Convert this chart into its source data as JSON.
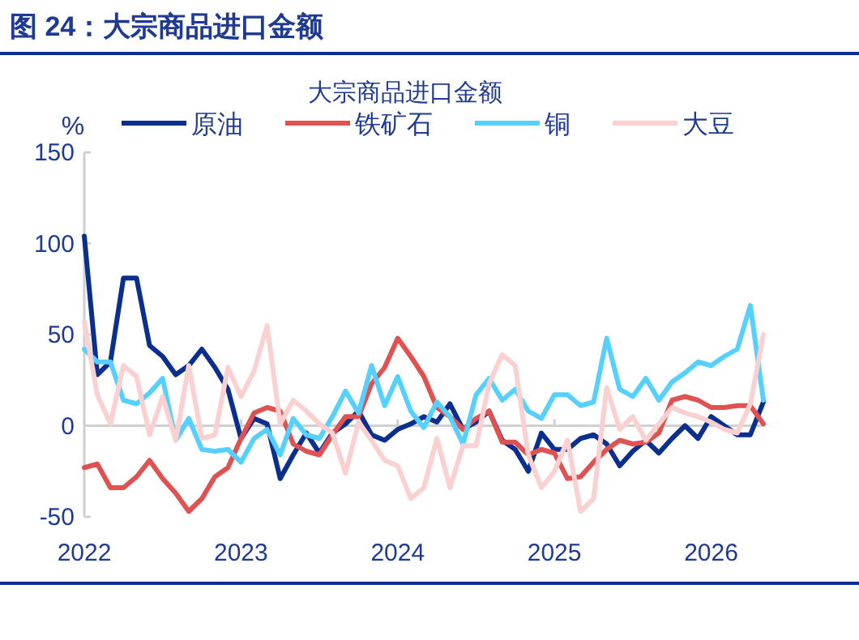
{
  "chart_data": {
    "type": "line",
    "title": "图 24：大宗商品进口金额",
    "subtitle": "大宗商品进口金额",
    "ylabel": "%",
    "x": [
      "2022-01",
      "2022-02",
      "2022-03",
      "2022-04",
      "2022-05",
      "2022-06",
      "2022-07",
      "2022-08",
      "2022-09",
      "2022-10",
      "2022-11",
      "2022-12",
      "2023-01",
      "2023-02",
      "2023-03",
      "2023-04",
      "2023-05",
      "2023-06",
      "2023-07",
      "2023-08",
      "2023-09",
      "2023-10",
      "2023-11",
      "2023-12",
      "2024-01",
      "2024-02",
      "2024-03",
      "2024-04",
      "2024-05",
      "2024-06",
      "2024-07",
      "2024-08",
      "2024-09",
      "2024-10",
      "2024-11",
      "2024-12",
      "2025-01",
      "2025-02",
      "2025-03",
      "2025-04",
      "2025-05",
      "2025-06",
      "2025-07",
      "2025-08",
      "2025-09",
      "2025-10",
      "2025-11",
      "2025-12",
      "2026-01",
      "2026-02",
      "2026-03",
      "2026-04",
      "2026-05"
    ],
    "series": [
      {
        "name": "原油",
        "color": "#0b2f8f",
        "values": [
          104,
          28,
          35,
          81,
          81,
          44,
          38,
          28,
          33,
          42,
          32,
          20,
          -7,
          4,
          1,
          -29,
          -16,
          -4,
          -15,
          -4,
          1,
          8,
          -5,
          -8,
          -2,
          1,
          5,
          2,
          12,
          -2,
          2,
          8,
          -8,
          -13,
          -25,
          -4,
          -13,
          -13,
          -7,
          -5,
          -10,
          -22,
          -14,
          -8,
          -15,
          -7,
          0,
          -7,
          5,
          0,
          -5,
          -5,
          13
        ]
      },
      {
        "name": "铁矿石",
        "color": "#e05252",
        "values": [
          -23,
          -21,
          -34,
          -34,
          -28,
          -19,
          -29,
          -37,
          -47,
          -40,
          -28,
          -23,
          -7,
          7,
          10,
          8,
          -10,
          -14,
          -16,
          -5,
          5,
          5,
          23,
          32,
          48,
          38,
          27,
          10,
          5,
          -2,
          4,
          8,
          -9,
          -9,
          -16,
          -13,
          -15,
          -29,
          -28,
          -20,
          -13,
          -8,
          -10,
          -9,
          -4,
          14,
          16,
          14,
          10,
          10,
          11,
          11,
          1
        ]
      },
      {
        "name": "铜",
        "color": "#55d0ff",
        "values": [
          42,
          35,
          35,
          14,
          12,
          18,
          26,
          -8,
          4,
          -13,
          -14,
          -13,
          -20,
          -7,
          -2,
          -16,
          4,
          -5,
          -7,
          5,
          19,
          7,
          33,
          11,
          27,
          8,
          -1,
          13,
          5,
          -10,
          17,
          26,
          14,
          20,
          8,
          4,
          17,
          17,
          11,
          13,
          48,
          20,
          16,
          26,
          14,
          24,
          29,
          35,
          33,
          38,
          42,
          66,
          14
        ]
      },
      {
        "name": "大豆",
        "color": "#fbd0d0",
        "values": [
          57,
          17,
          1,
          33,
          27,
          -5,
          16,
          -8,
          33,
          -7,
          -5,
          32,
          16,
          30,
          55,
          1,
          14,
          8,
          1,
          -4,
          -26,
          2,
          -8,
          -19,
          -22,
          -40,
          -34,
          -7,
          -34,
          -11,
          -11,
          23,
          39,
          33,
          -16,
          -34,
          -25,
          -8,
          -47,
          -40,
          21,
          -2,
          5,
          -8,
          1,
          10,
          7,
          5,
          2,
          -2,
          -4,
          12,
          50
        ]
      }
    ],
    "xlim": [
      "2022-01",
      "2026-05"
    ],
    "xticks": [
      {
        "value": "2022-01",
        "label": "2022"
      },
      {
        "value": "2023-01",
        "label": "2023"
      },
      {
        "value": "2024-01",
        "label": "2024"
      },
      {
        "value": "2025-01",
        "label": "2025"
      },
      {
        "value": "2026-01",
        "label": "2026"
      }
    ],
    "ylim": [
      -50,
      150
    ],
    "yticks": [
      -50,
      0,
      50,
      100,
      150
    ],
    "ref_lines": [
      {
        "axis": "y",
        "value": 0,
        "color": "#d0d0d0"
      }
    ],
    "legend": "top",
    "line_style": "solid"
  }
}
